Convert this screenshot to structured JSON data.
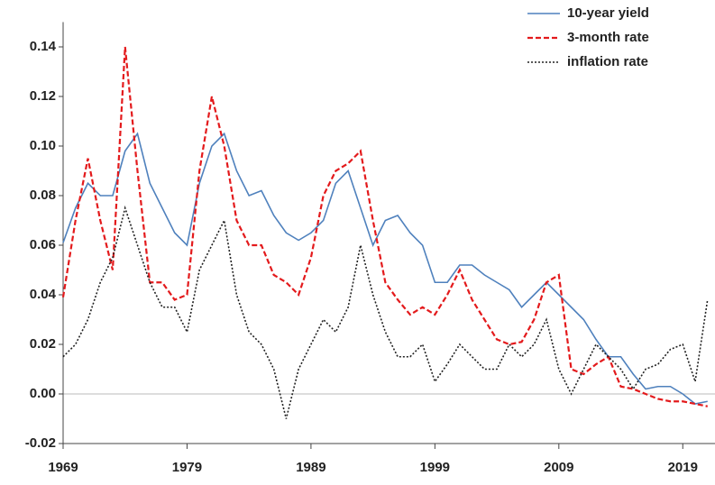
{
  "chart_data": {
    "type": "line",
    "x": [
      1969,
      1970,
      1971,
      1972,
      1973,
      1974,
      1975,
      1976,
      1977,
      1978,
      1979,
      1980,
      1981,
      1982,
      1983,
      1984,
      1985,
      1986,
      1987,
      1988,
      1989,
      1990,
      1991,
      1992,
      1993,
      1994,
      1995,
      1996,
      1997,
      1998,
      1999,
      2000,
      2001,
      2002,
      2003,
      2004,
      2005,
      2006,
      2007,
      2008,
      2009,
      2010,
      2011,
      2012,
      2013,
      2014,
      2015,
      2016,
      2017,
      2018,
      2019,
      2020,
      2021
    ],
    "series": [
      {
        "name": "10-year yield",
        "color": "#4f81bd",
        "dash": "solid",
        "values": [
          0.061,
          0.075,
          0.085,
          0.08,
          0.08,
          0.098,
          0.105,
          0.085,
          0.075,
          0.065,
          0.06,
          0.085,
          0.1,
          0.105,
          0.09,
          0.08,
          0.082,
          0.072,
          0.065,
          0.062,
          0.065,
          0.07,
          0.085,
          0.09,
          0.075,
          0.06,
          0.07,
          0.072,
          0.065,
          0.06,
          0.045,
          0.045,
          0.052,
          0.052,
          0.048,
          0.045,
          0.042,
          0.035,
          0.04,
          0.045,
          0.04,
          0.035,
          0.03,
          0.022,
          0.015,
          0.015,
          0.008,
          0.002,
          0.003,
          0.003,
          0.0,
          -0.004,
          -0.003
        ]
      },
      {
        "name": "3-month rate",
        "color": "#e31a1c",
        "dash": "dashed",
        "values": [
          0.039,
          0.07,
          0.095,
          0.07,
          0.05,
          0.14,
          0.09,
          0.045,
          0.045,
          0.038,
          0.04,
          0.09,
          0.12,
          0.1,
          0.07,
          0.06,
          0.06,
          0.048,
          0.045,
          0.04,
          0.055,
          0.08,
          0.09,
          0.093,
          0.098,
          0.07,
          0.045,
          0.038,
          0.032,
          0.035,
          0.032,
          0.04,
          0.05,
          0.038,
          0.03,
          0.022,
          0.02,
          0.021,
          0.03,
          0.045,
          0.048,
          0.01,
          0.008,
          0.012,
          0.015,
          0.003,
          0.002,
          0.0,
          -0.002,
          -0.003,
          -0.003,
          -0.004,
          -0.005
        ]
      },
      {
        "name": "inflation rate",
        "color": "#222222",
        "dash": "dotted",
        "values": [
          0.015,
          0.02,
          0.03,
          0.045,
          0.055,
          0.075,
          0.06,
          0.045,
          0.035,
          0.035,
          0.025,
          0.05,
          0.06,
          0.07,
          0.04,
          0.025,
          0.02,
          0.01,
          -0.01,
          0.01,
          0.02,
          0.03,
          0.025,
          0.035,
          0.06,
          0.04,
          0.025,
          0.015,
          0.015,
          0.02,
          0.005,
          0.012,
          0.02,
          0.015,
          0.01,
          0.01,
          0.02,
          0.015,
          0.02,
          0.03,
          0.01,
          0.0,
          0.01,
          0.02,
          0.015,
          0.01,
          0.002,
          0.01,
          0.012,
          0.018,
          0.02,
          0.005,
          0.038
        ]
      }
    ],
    "xlim": [
      1969,
      2021.6
    ],
    "xticks": [
      1969,
      1979,
      1989,
      1999,
      2009,
      2019
    ],
    "ylim": [
      -0.02,
      0.15
    ],
    "yticks": [
      {
        "value": -0.02,
        "label": "-0.02"
      },
      {
        "value": 0,
        "label": "0.00"
      },
      {
        "value": 0.02,
        "label": "0.02"
      },
      {
        "value": 0.04,
        "label": "0.04"
      },
      {
        "value": 0.06,
        "label": "0.06"
      },
      {
        "value": 0.08,
        "label": "0.08"
      },
      {
        "value": 0.1,
        "label": "0.10"
      },
      {
        "value": 0.12,
        "label": "0.12"
      },
      {
        "value": 0.14,
        "label": "0.14"
      }
    ],
    "zero_line": true,
    "grid": false,
    "legend": "upper right"
  }
}
